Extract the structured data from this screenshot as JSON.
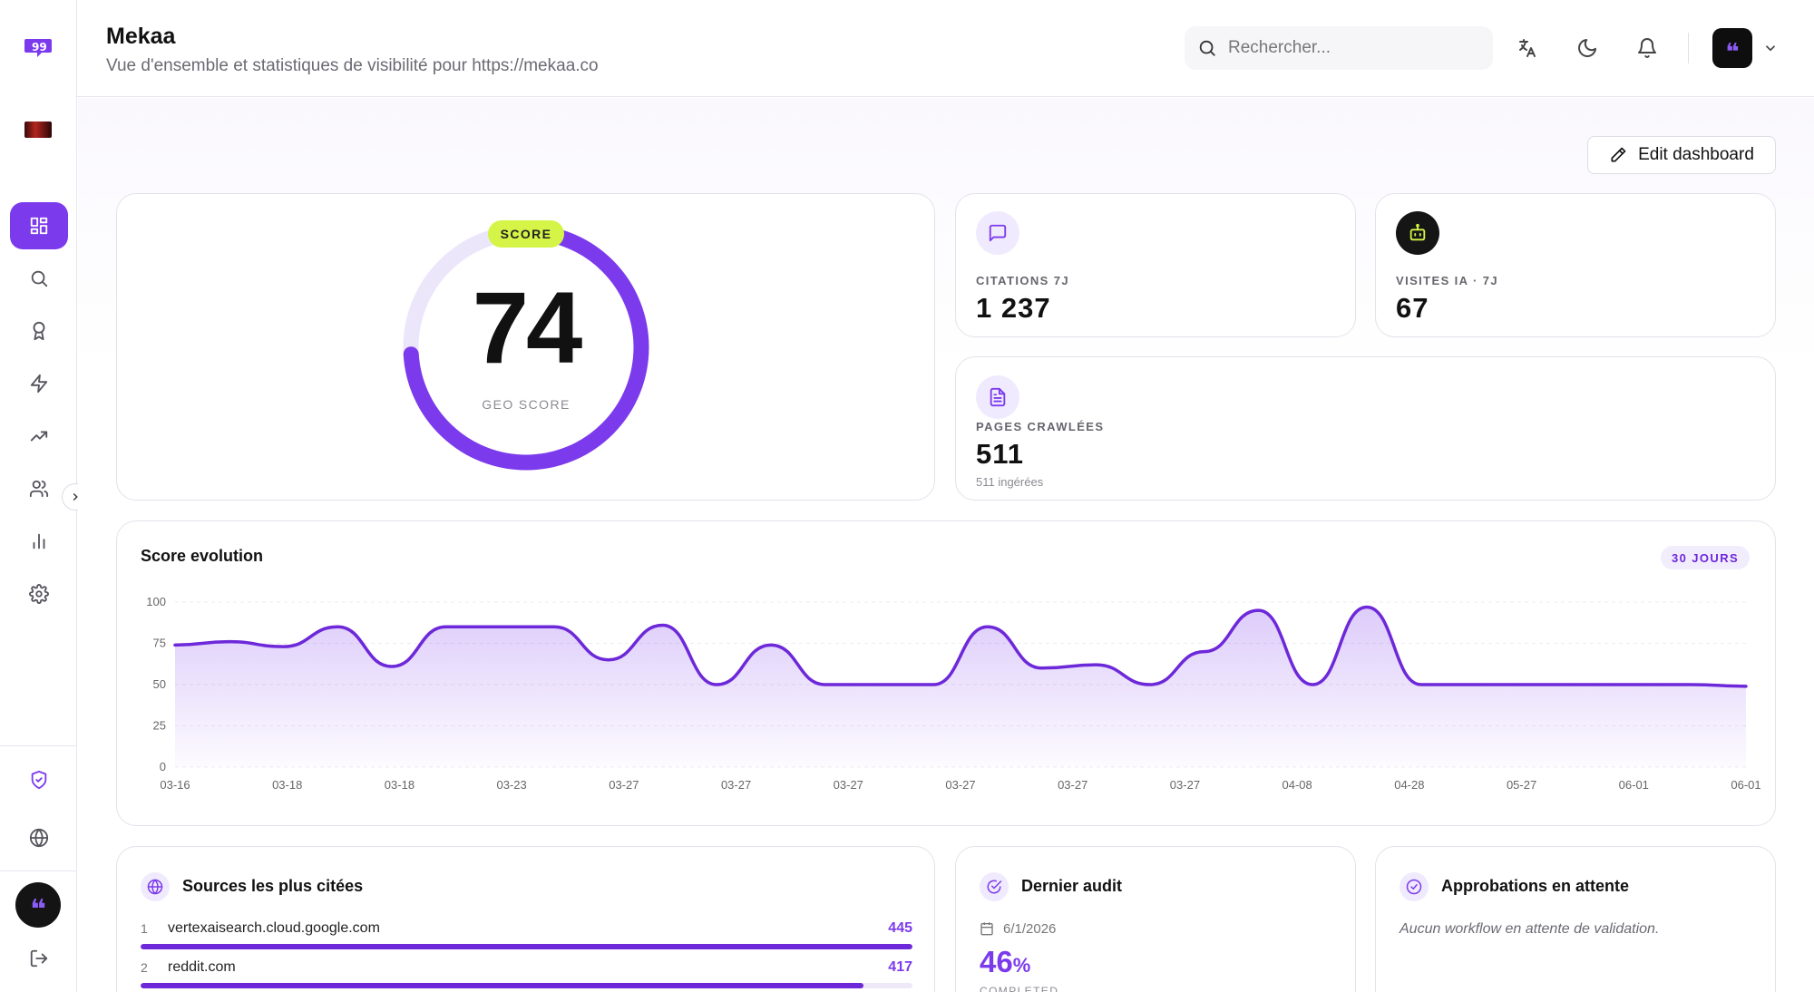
{
  "header": {
    "title": "Mekaa",
    "subtitle": "Vue d'ensemble et statistiques de visibilité pour https://mekaa.co",
    "search_placeholder": "Rechercher..."
  },
  "sidebar": {
    "items": [
      {
        "name": "dashboard",
        "icon": "grid-icon",
        "active": true
      },
      {
        "name": "search",
        "icon": "search-icon"
      },
      {
        "name": "awards",
        "icon": "award-icon"
      },
      {
        "name": "actions",
        "icon": "lightning-icon"
      },
      {
        "name": "trends",
        "icon": "trending-up-icon"
      },
      {
        "name": "users",
        "icon": "users-icon"
      },
      {
        "name": "analytics",
        "icon": "bar-chart-icon"
      },
      {
        "name": "settings",
        "icon": "gear-icon"
      }
    ],
    "bottom_items": [
      {
        "name": "security",
        "icon": "shield-check-icon"
      },
      {
        "name": "language",
        "icon": "globe-icon"
      },
      {
        "name": "logout",
        "icon": "logout-icon"
      }
    ]
  },
  "toolbar": {
    "edit_label": "Edit dashboard"
  },
  "score": {
    "pill": "SCORE",
    "value": "74",
    "label": "GEO SCORE",
    "percent": 0.74
  },
  "kpis": {
    "citations": {
      "label": "CITATIONS 7J",
      "value": "1 237"
    },
    "visits": {
      "label": "VISITES IA · 7J",
      "value": "67"
    },
    "pages": {
      "label": "PAGES CRAWLÉES",
      "value": "511",
      "sub": "511 ingérées"
    }
  },
  "chart_card": {
    "title": "Score evolution",
    "range": "30 JOURS"
  },
  "chart_data": {
    "type": "area",
    "title": "Score evolution",
    "x_ticks": [
      "03-16",
      "03-18",
      "03-18",
      "03-23",
      "03-27",
      "03-27",
      "03-27",
      "03-27",
      "03-27",
      "03-27",
      "04-08",
      "04-28",
      "05-27",
      "06-01",
      "06-01"
    ],
    "y_ticks": [
      0,
      25,
      50,
      75,
      100
    ],
    "ylim": [
      0,
      100
    ],
    "series": [
      {
        "values": [
          74,
          76,
          73,
          85,
          61,
          85,
          85,
          85,
          65,
          86,
          50,
          74,
          50,
          50,
          50,
          85,
          60,
          62,
          50,
          70,
          95,
          50,
          97,
          50,
          50,
          50,
          50,
          50,
          50,
          49
        ],
        "color": "#6d28d9"
      }
    ],
    "grid": true
  },
  "sources": {
    "title": "Sources les plus citées",
    "rows": [
      {
        "rank": "1",
        "name": "vertexaisearch.cloud.google.com",
        "count": "445",
        "fraction": 1.0
      },
      {
        "rank": "2",
        "name": "reddit.com",
        "count": "417",
        "fraction": 0.937
      }
    ]
  },
  "audit": {
    "title": "Dernier audit",
    "date": "6/1/2026",
    "percent": "46",
    "percent_sign": "%",
    "status": "COMPLETED"
  },
  "approvals": {
    "title": "Approbations en attente",
    "empty": "Aucun workflow en attente de validation."
  },
  "colors": {
    "accent": "#7c3aed",
    "lime": "#d4f547",
    "dark": "#111111"
  }
}
